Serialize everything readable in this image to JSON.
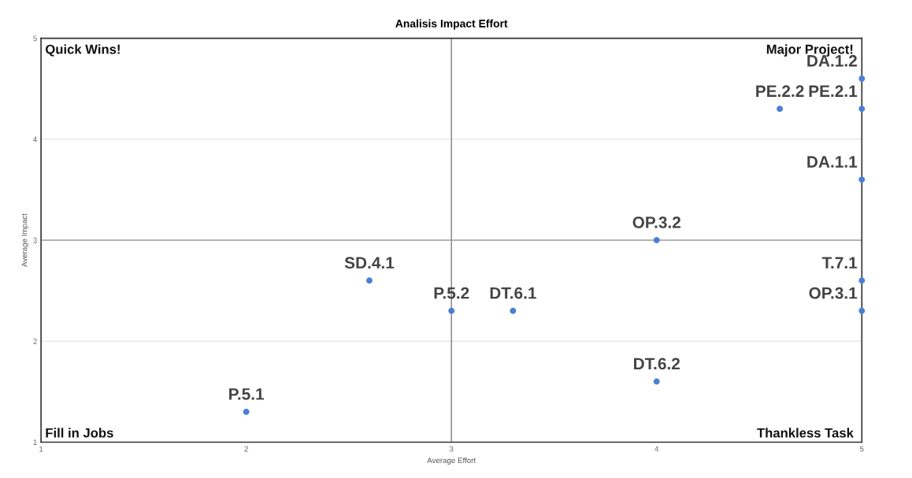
{
  "chart_data": {
    "type": "scatter",
    "title": "Analisis Impact Effort",
    "xlabel": "Average Effort",
    "ylabel": "Average Impact",
    "x": [
      2,
      2.6,
      3,
      3.3,
      4,
      4,
      4.6,
      5,
      5,
      5,
      5,
      5
    ],
    "values": [
      1.3,
      2.6,
      2.3,
      2.3,
      3.0,
      1.6,
      4.3,
      4.3,
      4.6,
      3.6,
      2.6,
      2.3
    ],
    "value_labels": [
      "P.5.1",
      "SD.4.1",
      "P.5.2",
      "DT.6.1",
      "OP.3.2",
      "DT.6.2",
      "PE.2.2",
      "PE.2.1",
      "DA.1.2",
      "DA.1.1",
      "T.7.1",
      "OP.3.1"
    ],
    "color": "#4a7fd4",
    "marker": "circle",
    "xlim": [
      1,
      5
    ],
    "ylim": [
      1,
      5
    ],
    "xticks": [
      1,
      2,
      3,
      4,
      5
    ],
    "yticks": [
      1,
      2,
      3,
      4,
      5
    ],
    "grid": "y",
    "ref_lines": [
      {
        "axis": "x",
        "value": 3,
        "color": "#808080"
      },
      {
        "axis": "y",
        "value": 3,
        "color": "#a0a0a0"
      }
    ],
    "annotations": [
      "Quick Wins!",
      "Major Project!",
      "Fill in Jobs",
      "Thankless Task"
    ]
  }
}
